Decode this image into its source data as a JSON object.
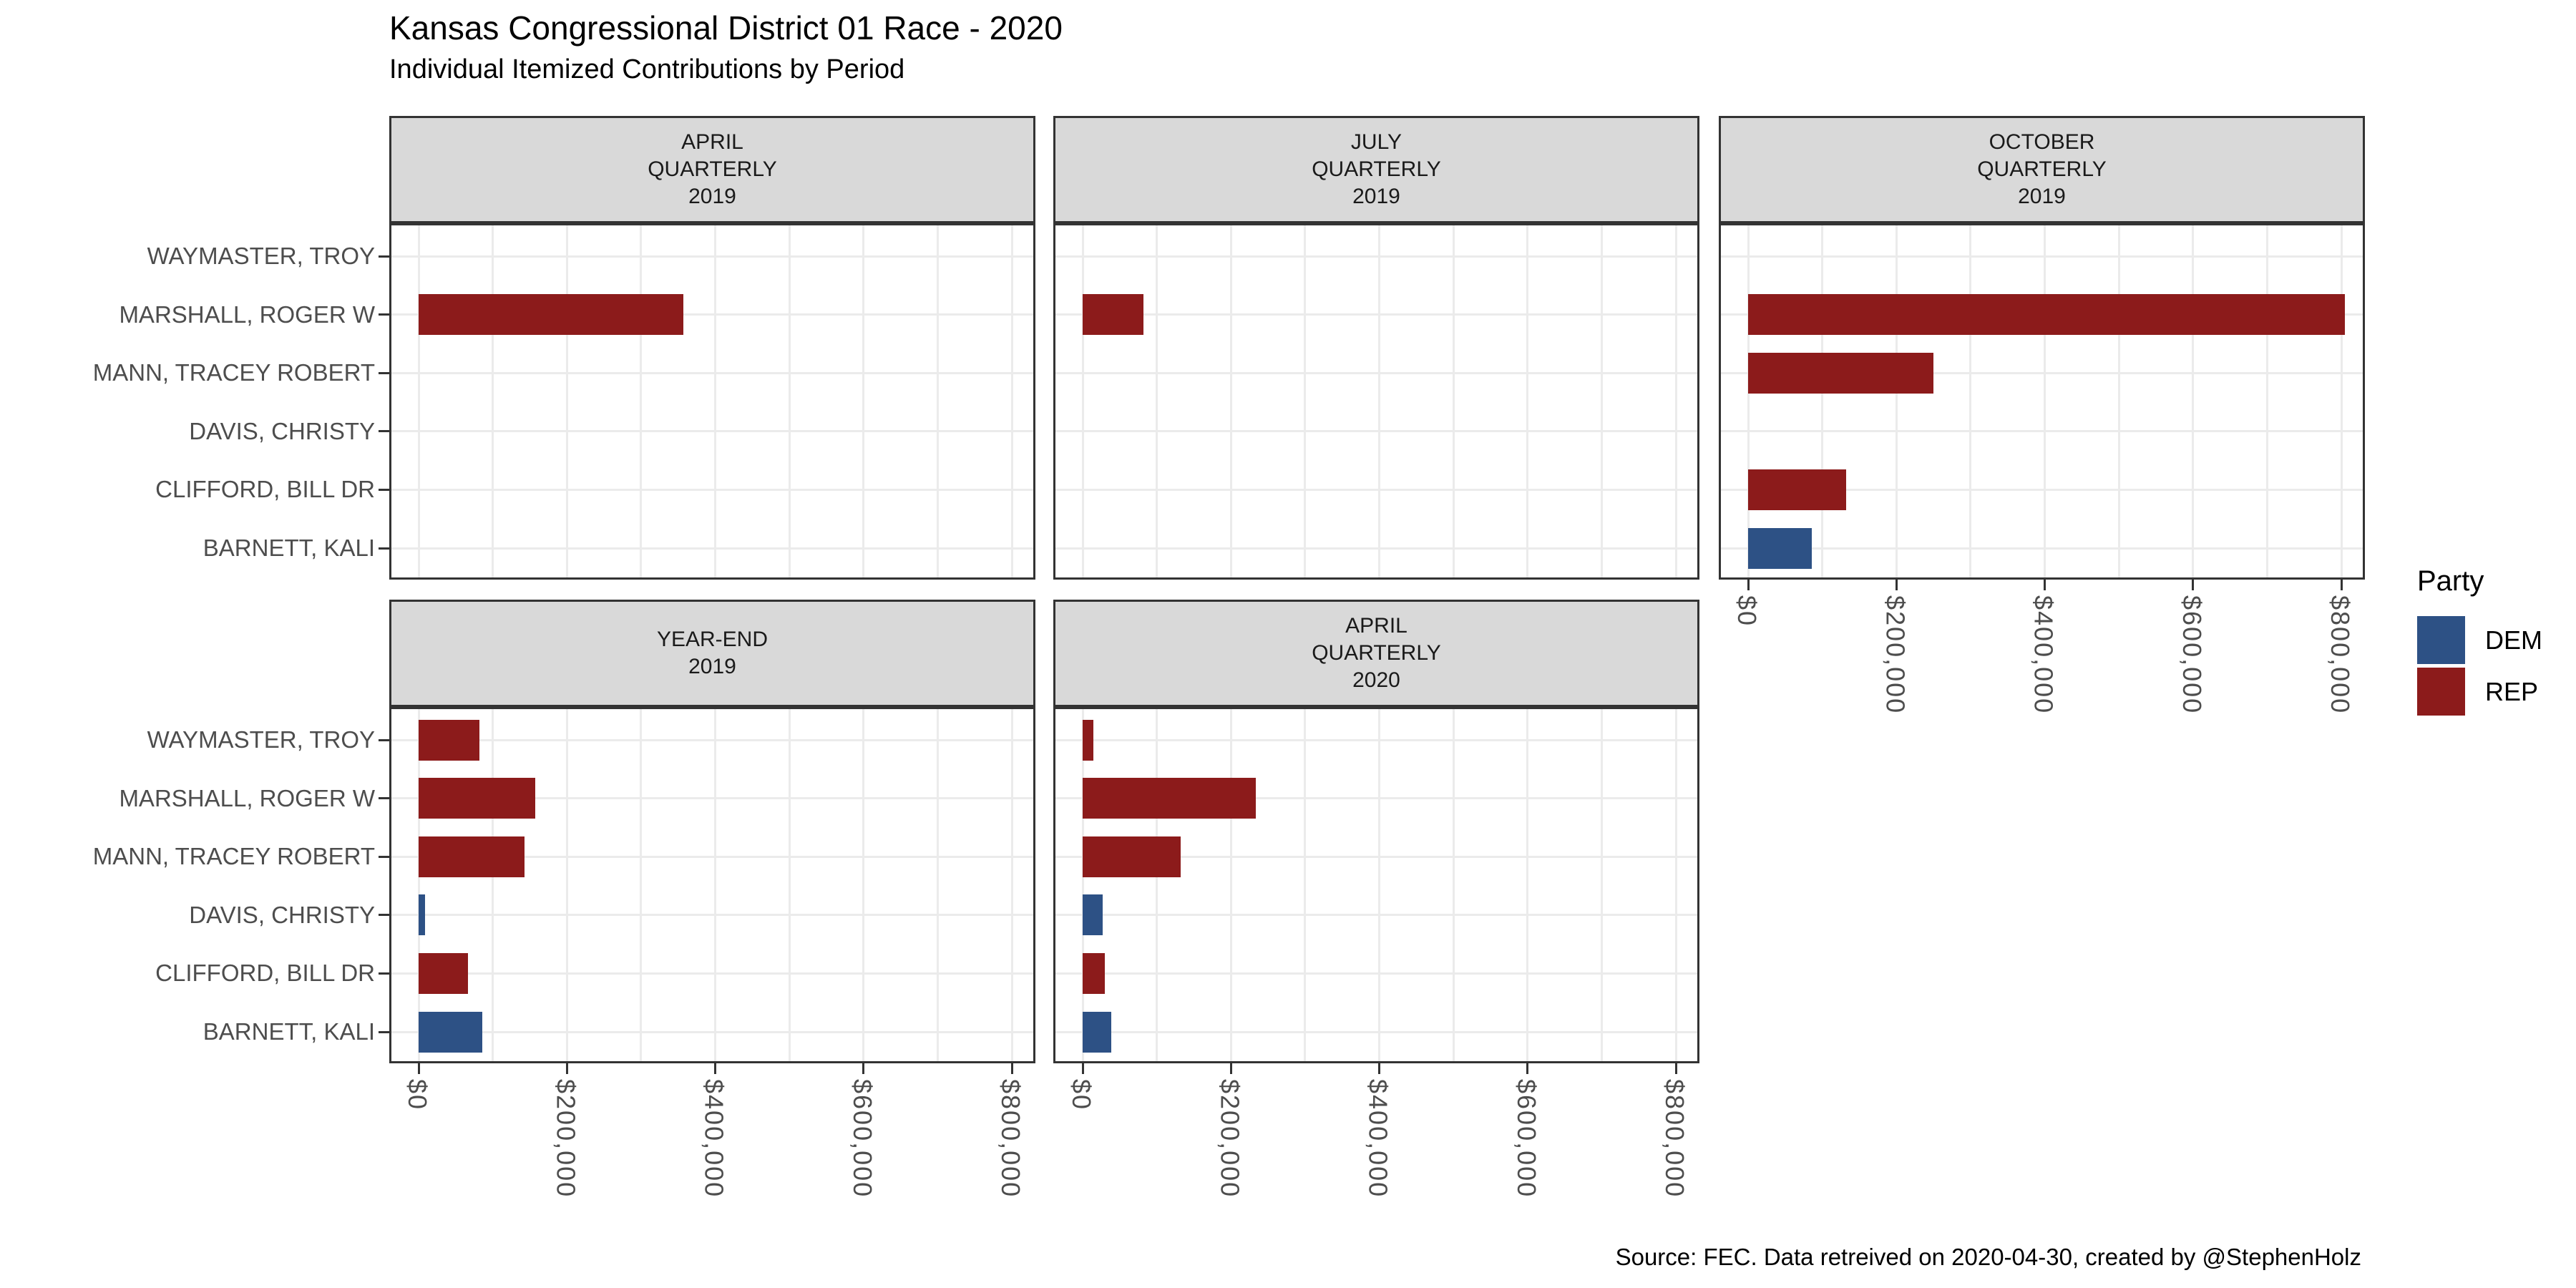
{
  "chart_data": {
    "type": "bar",
    "orientation": "horizontal",
    "title": "Kansas Congressional District 01 Race - 2020",
    "subtitle": "Individual Itemized Contributions by Period",
    "caption": "Source: FEC. Data retreived on 2020-04-30, created by @StephenHolz",
    "legend": {
      "title": "Party",
      "position": "right",
      "entries": [
        {
          "label": "DEM",
          "color": "#2D5185"
        },
        {
          "label": "REP",
          "color": "#8C1B1B"
        }
      ]
    },
    "candidates": [
      "WAYMASTER, TROY",
      "MARSHALL, ROGER W",
      "MANN, TRACEY ROBERT",
      "DAVIS, CHRISTY",
      "CLIFFORD, BILL DR",
      "BARNETT, KALI"
    ],
    "candidate_parties": [
      "REP",
      "REP",
      "REP",
      "DEM",
      "REP",
      "DEM"
    ],
    "x_axis": {
      "tick_labels": [
        "$0",
        "$200,000",
        "$400,000",
        "$600,000",
        "$800,000"
      ],
      "tick_values": [
        0,
        200000,
        400000,
        600000,
        800000
      ],
      "minor_gridline_step": 100000,
      "range": [
        0,
        800000
      ]
    },
    "grid": true,
    "facets": [
      {
        "label_lines": [
          "APRIL",
          "QUARTERLY",
          "2019"
        ],
        "row": 0,
        "col": 0,
        "show_x_axis": false,
        "show_y_axis": true,
        "values": [
          0,
          357000,
          0,
          0,
          0,
          0
        ]
      },
      {
        "label_lines": [
          "JULY",
          "QUARTERLY",
          "2019"
        ],
        "row": 0,
        "col": 1,
        "show_x_axis": false,
        "show_y_axis": false,
        "values": [
          0,
          82000,
          0,
          0,
          0,
          0
        ]
      },
      {
        "label_lines": [
          "OCTOBER",
          "QUARTERLY",
          "2019"
        ],
        "row": 0,
        "col": 2,
        "show_x_axis": true,
        "show_y_axis": false,
        "values": [
          0,
          805000,
          250000,
          0,
          132000,
          86000
        ]
      },
      {
        "label_lines": [
          "YEAR-END",
          "2019"
        ],
        "row": 1,
        "col": 0,
        "show_x_axis": true,
        "show_y_axis": true,
        "values": [
          82000,
          157000,
          143000,
          9000,
          67000,
          86000
        ]
      },
      {
        "label_lines": [
          "APRIL",
          "QUARTERLY",
          "2020"
        ],
        "row": 1,
        "col": 1,
        "show_x_axis": true,
        "show_y_axis": false,
        "values": [
          14000,
          234000,
          132000,
          27000,
          30000,
          39000
        ]
      }
    ],
    "style_colors": {
      "strip_fill": "#D9D9D9",
      "panel_border": "#333333",
      "gridline": "#EBEBEB",
      "axis_text": "#4D4D4D",
      "tick": "#333333",
      "dem": "#2D5185",
      "rep": "#8C1B1B"
    }
  }
}
